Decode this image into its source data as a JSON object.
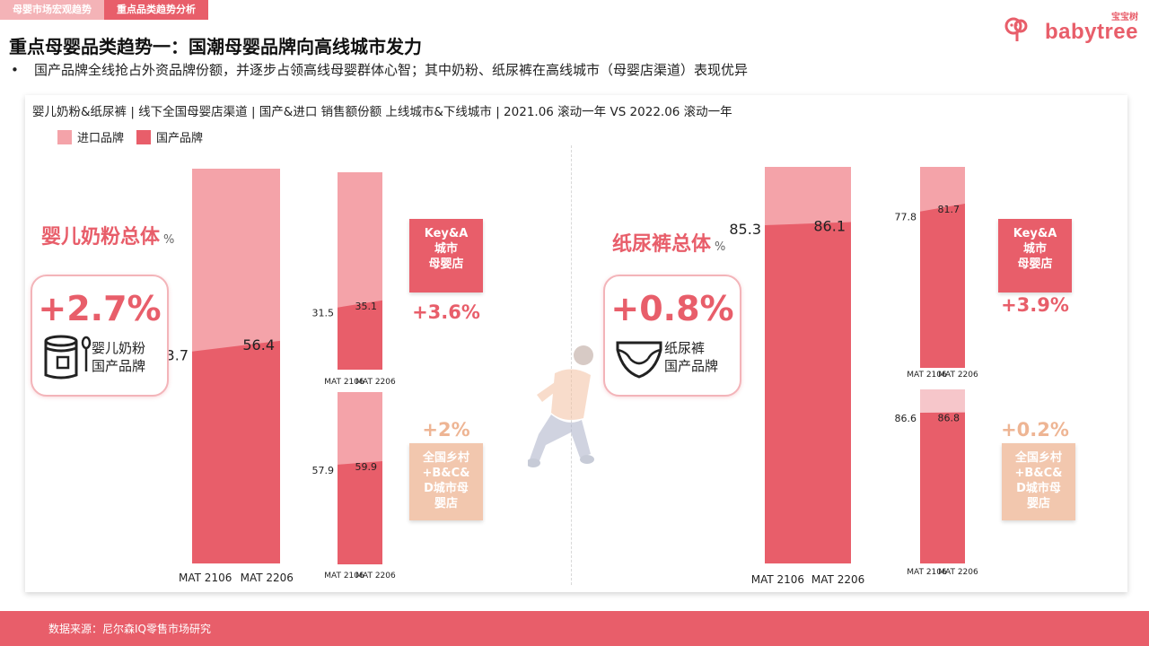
{
  "tabs": [
    {
      "label": "母婴市场宏观趋势",
      "active": false
    },
    {
      "label": "重点品类趋势分析",
      "active": true
    }
  ],
  "logo": {
    "cn": "宝宝树",
    "en": "babytree"
  },
  "headline": "重点母婴品类趋势一：国潮母婴品牌向高线城市发力",
  "bullet": "国产品牌全线抢占外资品牌份额，并逐步占领高线母婴群体心智；其中奶粉、纸尿裤在高线城市（母婴店渠道）表现优异",
  "footer": "数据来源：尼尔森IQ零售市场研究",
  "colors": {
    "domestic": "#e85e6a",
    "import": "#f4a3a9",
    "import_light": "#f6c6ca",
    "accent": "#e85e6a",
    "peach": "#f2c7ae"
  },
  "chart_data": {
    "type": "bar",
    "title": "婴儿奶粉&纸尿裤 | 线下全国母婴店渠道 | 国产&进口 销售额份额 上线城市&下线城市 | 2021.06 滚动一年 VS 2022.06 滚动一年",
    "legend": [
      "进口品牌",
      "国产品牌"
    ],
    "legend_placement": "top-left",
    "categories": [
      "MAT 2106",
      "MAT 2206"
    ],
    "ylim": [
      0,
      100
    ],
    "unit": "%",
    "panels": [
      {
        "id": "milk",
        "name": "婴儿奶粉总体",
        "callout": {
          "delta": "+2.7%",
          "label_line1": "婴儿奶粉",
          "label_line2": "国产品牌",
          "icon": "formula-can-icon"
        },
        "total": {
          "domestic": [
            53.7,
            56.4
          ]
        },
        "sub": [
          {
            "tag": [
              "Key&A",
              "城市",
              "母婴店"
            ],
            "delta": "+3.6%",
            "domestic": [
              31.5,
              35.1
            ]
          },
          {
            "tag": [
              "全国乡村",
              "+B&C&",
              "D城市母",
              "婴店"
            ],
            "delta": "+2%",
            "domestic": [
              57.9,
              59.9
            ]
          }
        ]
      },
      {
        "id": "diaper",
        "name": "纸尿裤总体",
        "callout": {
          "delta": "+0.8%",
          "label_line1": "纸尿裤",
          "label_line2": "国产品牌",
          "icon": "diaper-icon"
        },
        "total": {
          "domestic": [
            85.3,
            86.1
          ]
        },
        "sub": [
          {
            "tag": [
              "Key&A",
              "城市",
              "母婴店"
            ],
            "delta": "+3.9%",
            "domestic": [
              77.8,
              81.7
            ]
          },
          {
            "tag": [
              "全国乡村",
              "+B&C&",
              "D城市母",
              "婴店"
            ],
            "delta": "+0.2%",
            "domestic": [
              86.6,
              86.8
            ]
          }
        ]
      }
    ]
  }
}
